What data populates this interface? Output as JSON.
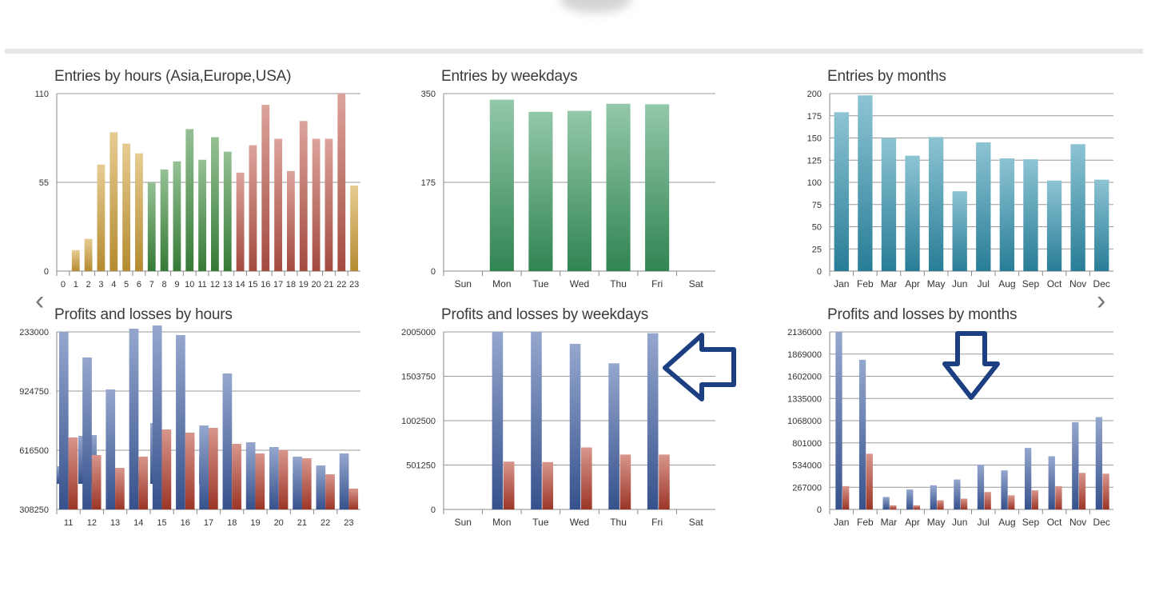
{
  "nav": {
    "prev": "‹",
    "next": "›"
  },
  "chart_data": [
    {
      "id": "c1",
      "type": "bar",
      "title": "Entries by hours (Asia,Europe,USA)",
      "categories": [
        "0",
        "1",
        "2",
        "3",
        "4",
        "5",
        "6",
        "7",
        "8",
        "9",
        "10",
        "11",
        "12",
        "13",
        "14",
        "15",
        "16",
        "17",
        "18",
        "19",
        "20",
        "21",
        "22",
        "23"
      ],
      "values": [
        0,
        13,
        20,
        66,
        86,
        79,
        73,
        55,
        63,
        68,
        88,
        69,
        83,
        74,
        61,
        78,
        103,
        82,
        62,
        93,
        82,
        82,
        110,
        53
      ],
      "colors": [
        "#d4a338",
        "#d4a338",
        "#d4a338",
        "#d4a338",
        "#d4a338",
        "#d4a338",
        "#d4a338",
        "#3f8f3f",
        "#3f8f3f",
        "#3f8f3f",
        "#3f8f3f",
        "#3f8f3f",
        "#3f8f3f",
        "#3f8f3f",
        "#c0584a",
        "#c0584a",
        "#c0584a",
        "#c0584a",
        "#c0584a",
        "#c0584a",
        "#c0584a",
        "#c0584a",
        "#c0584a",
        "#d4a338"
      ],
      "ylim": [
        0,
        110
      ],
      "yticks": [
        "0",
        "55",
        "110"
      ],
      "grid": true
    },
    {
      "id": "c2",
      "type": "bar",
      "title": "Entries by weekdays",
      "categories": [
        "Sun",
        "Mon",
        "Tue",
        "Wed",
        "Thu",
        "Fri",
        "Sat"
      ],
      "values": [
        0,
        338,
        314,
        316,
        330,
        329,
        0
      ],
      "colors": [
        "#3a9b62"
      ],
      "ylim": [
        0,
        350
      ],
      "yticks": [
        "0",
        "175",
        "350"
      ],
      "grid": true
    },
    {
      "id": "c3",
      "type": "bar",
      "title": "Entries by months",
      "categories": [
        "Jan",
        "Feb",
        "Mar",
        "Apr",
        "May",
        "Jun",
        "Jul",
        "Aug",
        "Sep",
        "Oct",
        "Nov",
        "Dec"
      ],
      "values": [
        179,
        198,
        150,
        130,
        151,
        90,
        145,
        127,
        126,
        102,
        143,
        103
      ],
      "colors": [
        "#2f93b0"
      ],
      "ylim": [
        0,
        200
      ],
      "yticks": [
        "0",
        "25",
        "50",
        "75",
        "100",
        "125",
        "150",
        "175",
        "200"
      ],
      "grid": true
    },
    {
      "id": "c4",
      "type": "bar",
      "title": "Profits and losses by hours",
      "categories": [
        "11",
        "12",
        "13",
        "14",
        "15",
        "16",
        "17",
        "18",
        "19",
        "20",
        "21",
        "22",
        "23"
      ],
      "yticks": [
        "308250",
        "616500",
        "924750",
        "233000"
      ],
      "series": [
        {
          "color": "#3f5fa5"
        },
        {
          "color": "#b8402e"
        }
      ],
      "grid": true
    },
    {
      "id": "c5",
      "type": "bar",
      "title": "Profits and losses by weekdays",
      "categories": [
        "Sun",
        "Mon",
        "Tue",
        "Wed",
        "Thu",
        "Fri",
        "Sat"
      ],
      "ylim": [
        0,
        2005000
      ],
      "yticks": [
        "0",
        "501250",
        "1002500",
        "1503750",
        "2005000"
      ],
      "series": [
        {
          "color": "#3f5fa5",
          "values": [
            0,
            2005000,
            2005000,
            1870000,
            1650000,
            1990000,
            0
          ]
        },
        {
          "color": "#b8402e",
          "values": [
            0,
            540000,
            535000,
            700000,
            620000,
            620000,
            0
          ]
        }
      ],
      "grid": true
    },
    {
      "id": "c6",
      "type": "bar",
      "title": "Profits and losses by months",
      "categories": [
        "Jan",
        "Feb",
        "Mar",
        "Apr",
        "May",
        "Jun",
        "Jul",
        "Aug",
        "Sep",
        "Oct",
        "Nov",
        "Dec"
      ],
      "ylim": [
        0,
        2136000
      ],
      "yticks": [
        "0",
        "267000",
        "534000",
        "801000",
        "1068000",
        "1335000",
        "1602000",
        "1869000",
        "2136000"
      ],
      "series": [
        {
          "color": "#3f5fa5",
          "values": [
            2136000,
            1800000,
            150000,
            240000,
            290000,
            360000,
            540000,
            470000,
            740000,
            640000,
            1050000,
            1110000
          ]
        },
        {
          "color": "#b8402e",
          "values": [
            280000,
            670000,
            50000,
            50000,
            110000,
            130000,
            210000,
            170000,
            230000,
            280000,
            440000,
            430000
          ]
        }
      ],
      "grid": true
    }
  ]
}
